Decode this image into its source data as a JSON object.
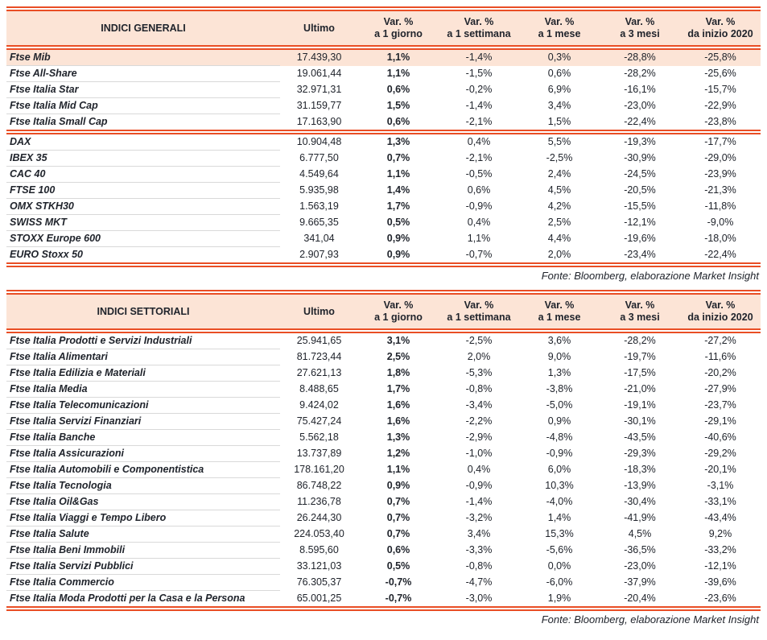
{
  "colors": {
    "accent_line": "#e94e25",
    "header_bg": "#fce4d6",
    "highlight_row_bg": "#fce4d6",
    "text": "#20242c",
    "row_rule": "#d9d9d9"
  },
  "tables": [
    {
      "title": "INDICI GENERALI",
      "column_headers": [
        "Ultimo",
        "Var. %\na 1 giorno",
        "Var. %\na 1 settimana",
        "Var. %\na 1 mese",
        "Var. %\na 3 mesi",
        "Var. %\nda inizio 2020"
      ],
      "highlight_rows": [
        0
      ],
      "group_break_after": [
        4
      ],
      "rows": [
        {
          "name": "Ftse Mib",
          "values": [
            "17.439,30",
            "1,1%",
            "-1,4%",
            "0,3%",
            "-28,8%",
            "-25,8%"
          ]
        },
        {
          "name": "Ftse All-Share",
          "values": [
            "19.061,44",
            "1,1%",
            "-1,5%",
            "0,6%",
            "-28,2%",
            "-25,6%"
          ]
        },
        {
          "name": "Ftse Italia Star",
          "values": [
            "32.971,31",
            "0,6%",
            "-0,2%",
            "6,9%",
            "-16,1%",
            "-15,7%"
          ]
        },
        {
          "name": "Ftse Italia Mid Cap",
          "values": [
            "31.159,77",
            "1,5%",
            "-1,4%",
            "3,4%",
            "-23,0%",
            "-22,9%"
          ]
        },
        {
          "name": "Ftse Italia Small Cap",
          "values": [
            "17.163,90",
            "0,6%",
            "-2,1%",
            "1,5%",
            "-22,4%",
            "-23,8%"
          ]
        },
        {
          "name": "DAX",
          "values": [
            "10.904,48",
            "1,3%",
            "0,4%",
            "5,5%",
            "-19,3%",
            "-17,7%"
          ]
        },
        {
          "name": "IBEX 35",
          "values": [
            "6.777,50",
            "0,7%",
            "-2,1%",
            "-2,5%",
            "-30,9%",
            "-29,0%"
          ]
        },
        {
          "name": "CAC 40",
          "values": [
            "4.549,64",
            "1,1%",
            "-0,5%",
            "2,4%",
            "-24,5%",
            "-23,9%"
          ]
        },
        {
          "name": "FTSE 100",
          "values": [
            "5.935,98",
            "1,4%",
            "0,6%",
            "4,5%",
            "-20,5%",
            "-21,3%"
          ]
        },
        {
          "name": "OMX STKH30",
          "values": [
            "1.563,19",
            "1,7%",
            "-0,9%",
            "4,2%",
            "-15,5%",
            "-11,8%"
          ]
        },
        {
          "name": "SWISS MKT",
          "values": [
            "9.665,35",
            "0,5%",
            "0,4%",
            "2,5%",
            "-12,1%",
            "-9,0%"
          ]
        },
        {
          "name": "STOXX Europe 600",
          "values": [
            "341,04",
            "0,9%",
            "1,1%",
            "4,4%",
            "-19,6%",
            "-18,0%"
          ]
        },
        {
          "name": "EURO Stoxx 50",
          "values": [
            "2.907,93",
            "0,9%",
            "-0,7%",
            "2,0%",
            "-23,4%",
            "-22,4%"
          ]
        }
      ],
      "footer": "Fonte: Bloomberg, elaborazione Market Insight"
    },
    {
      "title": "INDICI SETTORIALI",
      "column_headers": [
        "Ultimo",
        "Var. %\na 1 giorno",
        "Var. %\na 1 settimana",
        "Var. %\na 1 mese",
        "Var. %\na 3 mesi",
        "Var. %\nda inizio 2020"
      ],
      "highlight_rows": [],
      "group_break_after": [],
      "rows": [
        {
          "name": "Ftse Italia Prodotti e Servizi Industriali",
          "values": [
            "25.941,65",
            "3,1%",
            "-2,5%",
            "3,6%",
            "-28,2%",
            "-27,2%"
          ]
        },
        {
          "name": "Ftse Italia Alimentari",
          "values": [
            "81.723,44",
            "2,5%",
            "2,0%",
            "9,0%",
            "-19,7%",
            "-11,6%"
          ]
        },
        {
          "name": "Ftse Italia Edilizia e Materiali",
          "values": [
            "27.621,13",
            "1,8%",
            "-5,3%",
            "1,3%",
            "-17,5%",
            "-20,2%"
          ]
        },
        {
          "name": "Ftse Italia Media",
          "values": [
            "8.488,65",
            "1,7%",
            "-0,8%",
            "-3,8%",
            "-21,0%",
            "-27,9%"
          ]
        },
        {
          "name": "Ftse Italia Telecomunicazioni",
          "values": [
            "9.424,02",
            "1,6%",
            "-3,4%",
            "-5,0%",
            "-19,1%",
            "-23,7%"
          ]
        },
        {
          "name": "Ftse Italia Servizi Finanziari",
          "values": [
            "75.427,24",
            "1,6%",
            "-2,2%",
            "0,9%",
            "-30,1%",
            "-29,1%"
          ]
        },
        {
          "name": "Ftse Italia Banche",
          "values": [
            "5.562,18",
            "1,3%",
            "-2,9%",
            "-4,8%",
            "-43,5%",
            "-40,6%"
          ]
        },
        {
          "name": "Ftse Italia Assicurazioni",
          "values": [
            "13.737,89",
            "1,2%",
            "-1,0%",
            "-0,9%",
            "-29,3%",
            "-29,2%"
          ]
        },
        {
          "name": "Ftse Italia Automobili e Componentistica",
          "values": [
            "178.161,20",
            "1,1%",
            "0,4%",
            "6,0%",
            "-18,3%",
            "-20,1%"
          ]
        },
        {
          "name": "Ftse Italia Tecnologia",
          "values": [
            "86.748,22",
            "0,9%",
            "-0,9%",
            "10,3%",
            "-13,9%",
            "-3,1%"
          ]
        },
        {
          "name": "Ftse Italia Oil&Gas",
          "values": [
            "11.236,78",
            "0,7%",
            "-1,4%",
            "-4,0%",
            "-30,4%",
            "-33,1%"
          ]
        },
        {
          "name": "Ftse Italia Viaggi e Tempo Libero",
          "values": [
            "26.244,30",
            "0,7%",
            "-3,2%",
            "1,4%",
            "-41,9%",
            "-43,4%"
          ]
        },
        {
          "name": "Ftse Italia Salute",
          "values": [
            "224.053,40",
            "0,7%",
            "3,4%",
            "15,3%",
            "4,5%",
            "9,2%"
          ]
        },
        {
          "name": "Ftse Italia Beni Immobili",
          "values": [
            "8.595,60",
            "0,6%",
            "-3,3%",
            "-5,6%",
            "-36,5%",
            "-33,2%"
          ]
        },
        {
          "name": "Ftse Italia Servizi Pubblici",
          "values": [
            "33.121,03",
            "0,5%",
            "-0,8%",
            "0,0%",
            "-23,0%",
            "-12,1%"
          ]
        },
        {
          "name": "Ftse Italia Commercio",
          "values": [
            "76.305,37",
            "-0,7%",
            "-4,7%",
            "-6,0%",
            "-37,9%",
            "-39,6%"
          ]
        },
        {
          "name": "Ftse Italia Moda Prodotti per la Casa e la Persona",
          "values": [
            "65.001,25",
            "-0,7%",
            "-3,0%",
            "1,9%",
            "-20,4%",
            "-23,6%"
          ]
        }
      ],
      "footer": "Fonte: Bloomberg, elaborazione Market Insight"
    }
  ]
}
